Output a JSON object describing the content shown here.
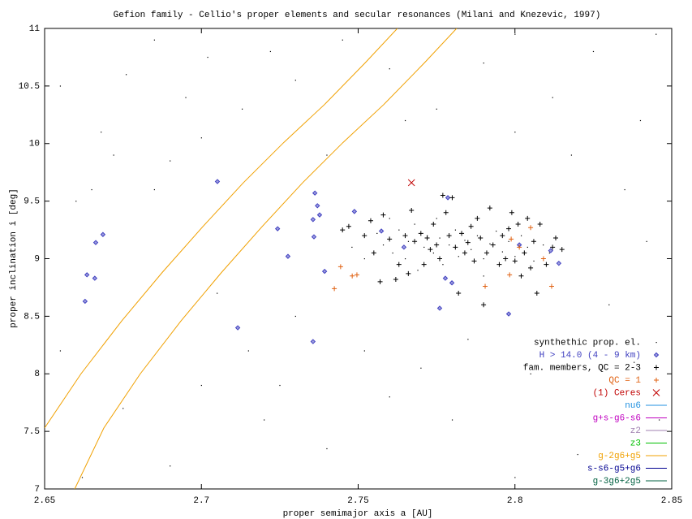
{
  "chart_data": {
    "type": "scatter",
    "title": "Gefion family - Cellio's proper elements and secular resonances (Milani and Knezevic, 1997)",
    "xlabel": "proper semimajor axis a [AU]",
    "ylabel": "proper inclination i [deg]",
    "xlim": [
      2.65,
      2.85
    ],
    "ylim": [
      7,
      11
    ],
    "xticks": [
      2.65,
      2.7,
      2.75,
      2.8,
      2.85
    ],
    "yticks": [
      7,
      7.5,
      8,
      8.5,
      9,
      9.5,
      10,
      10.5,
      11
    ],
    "grid": false,
    "legend": "bottom-right",
    "series": [
      {
        "name": "synthethic prop. el.",
        "color": "#000000",
        "marker": "dot",
        "x": [
          2.655,
          2.668,
          2.676,
          2.685,
          2.695,
          2.702,
          2.713,
          2.722,
          2.73,
          2.745,
          2.76,
          2.775,
          2.79,
          2.8,
          2.812,
          2.825,
          2.84,
          2.845,
          2.835,
          2.842,
          2.83,
          2.838,
          2.846,
          2.82,
          2.8,
          2.78,
          2.76,
          2.74,
          2.72,
          2.7,
          2.69,
          2.675,
          2.662,
          2.655,
          2.66,
          2.672,
          2.69,
          2.7,
          2.715,
          2.725,
          2.73,
          2.752,
          2.77,
          2.785,
          2.805,
          2.818,
          2.8,
          2.765,
          2.74,
          2.705,
          2.685,
          2.665,
          2.748,
          2.752,
          2.756,
          2.758,
          2.761,
          2.763,
          2.765,
          2.766,
          2.768,
          2.769,
          2.771,
          2.772,
          2.774,
          2.776,
          2.777,
          2.779,
          2.781,
          2.782,
          2.784,
          2.786,
          2.788,
          2.79,
          2.792,
          2.794,
          2.796,
          2.798,
          2.8,
          2.802,
          2.804,
          2.806,
          2.809,
          2.811,
          2.76,
          2.775,
          2.79
        ],
        "values": [
          10.5,
          10.1,
          10.6,
          10.9,
          10.4,
          10.75,
          10.3,
          10.8,
          10.55,
          10.9,
          10.65,
          10.3,
          10.7,
          10.95,
          10.4,
          10.8,
          10.2,
          10.95,
          9.6,
          9.15,
          8.6,
          8.1,
          7.6,
          7.3,
          7.1,
          7.6,
          7.8,
          7.35,
          7.6,
          7.9,
          7.2,
          7.7,
          7.1,
          8.2,
          9.5,
          9.9,
          9.85,
          10.05,
          8.2,
          7.9,
          8.5,
          8.2,
          8.05,
          8.3,
          8.0,
          9.9,
          10.1,
          10.2,
          9.9,
          8.7,
          9.6,
          9.6,
          9.1,
          9.0,
          9.22,
          9.12,
          9.05,
          9.25,
          9.0,
          9.15,
          9.3,
          8.9,
          9.1,
          9.2,
          9.05,
          9.18,
          8.95,
          9.12,
          9.25,
          9.02,
          9.16,
          9.08,
          9.2,
          9.0,
          9.13,
          9.24,
          9.06,
          9.15,
          9.02,
          9.2,
          9.1,
          8.98,
          9.12,
          9.05,
          9.35,
          9.35,
          8.85
        ]
      },
      {
        "name": "H > 14.0 (4 - 9 km)",
        "color": "#4040c0",
        "marker": "diamond",
        "x": [
          2.6635,
          2.6629,
          2.666,
          2.6663,
          2.6686,
          2.7051,
          2.7116,
          2.7243,
          2.7276,
          2.7362,
          2.737,
          2.7356,
          2.7359,
          2.7377,
          2.7393,
          2.7356,
          2.7488,
          2.7574,
          2.7646,
          2.7778,
          2.7786,
          2.7799,
          2.776,
          2.798,
          2.8014,
          2.8114,
          2.814
        ],
        "values": [
          8.86,
          8.63,
          8.83,
          9.14,
          9.21,
          9.67,
          8.4,
          9.26,
          9.02,
          9.57,
          9.46,
          9.34,
          9.19,
          9.38,
          8.89,
          8.28,
          9.41,
          9.24,
          9.1,
          8.83,
          9.53,
          8.79,
          8.57,
          8.52,
          9.12,
          9.07,
          8.96
        ]
      },
      {
        "name": "fam. members, QC = 2-3",
        "color": "#000000",
        "marker": "plus",
        "x": [
          2.745,
          2.747,
          2.752,
          2.755,
          2.757,
          2.758,
          2.76,
          2.762,
          2.763,
          2.765,
          2.766,
          2.768,
          2.77,
          2.771,
          2.772,
          2.774,
          2.775,
          2.776,
          2.778,
          2.779,
          2.78,
          2.781,
          2.782,
          2.783,
          2.784,
          2.785,
          2.786,
          2.787,
          2.788,
          2.789,
          2.79,
          2.791,
          2.792,
          2.793,
          2.795,
          2.796,
          2.797,
          2.798,
          2.799,
          2.8,
          2.801,
          2.802,
          2.803,
          2.804,
          2.805,
          2.806,
          2.807,
          2.808,
          2.81,
          2.812,
          2.813,
          2.815,
          2.754,
          2.767,
          2.773,
          2.777
        ],
        "values": [
          9.25,
          9.28,
          9.2,
          9.05,
          8.8,
          9.38,
          9.17,
          8.82,
          8.95,
          9.2,
          8.87,
          9.15,
          9.22,
          8.95,
          9.18,
          9.3,
          9.12,
          9.0,
          9.4,
          9.2,
          9.53,
          9.1,
          8.7,
          9.22,
          9.05,
          9.14,
          9.28,
          8.98,
          9.35,
          9.18,
          8.6,
          9.05,
          9.44,
          9.12,
          8.95,
          9.2,
          9.0,
          9.26,
          9.4,
          8.98,
          9.3,
          8.85,
          9.05,
          9.35,
          8.92,
          9.15,
          8.7,
          9.3,
          8.95,
          9.1,
          9.18,
          9.08,
          9.33,
          9.42,
          9.08,
          9.55
        ]
      },
      {
        "name": "QC = 1",
        "color": "#e06010",
        "marker": "plus",
        "x": [
          2.7444,
          2.7424,
          2.7481,
          2.7496,
          2.7905,
          2.7983,
          2.8014,
          2.805,
          2.8091,
          2.8117,
          2.7988
        ],
        "values": [
          8.93,
          8.74,
          8.85,
          8.86,
          8.76,
          8.86,
          9.1,
          9.27,
          9.0,
          8.76,
          9.17
        ]
      },
      {
        "name": "(1) Ceres",
        "color": "#c00000",
        "marker": "cross",
        "x": [
          2.767
        ],
        "values": [
          9.66
        ]
      },
      {
        "name": "nu6",
        "color": "#2090e0",
        "marker": "line",
        "x": [],
        "values": []
      },
      {
        "name": "g+s-g6-s6",
        "color": "#c000c0",
        "marker": "line",
        "x": [],
        "values": []
      },
      {
        "name": "z2",
        "color": "#a080b0",
        "marker": "line",
        "x": [],
        "values": []
      },
      {
        "name": "z3",
        "color": "#00c000",
        "marker": "line",
        "x": [],
        "values": []
      },
      {
        "name": "g-2g6+g5",
        "color": "#f0a000",
        "marker": "line",
        "x": [
          2.65,
          2.6616,
          2.6746,
          2.6875,
          2.7005,
          2.7134,
          2.7263,
          2.7393,
          2.7522,
          2.7625,
          null,
          2.6596,
          2.6689,
          2.6805,
          2.6935,
          2.7064,
          2.7194,
          2.7323,
          2.7452,
          2.7582,
          2.7711,
          2.7814
        ],
        "values": [
          7.53,
          8.0,
          8.46,
          8.88,
          9.28,
          9.66,
          10.01,
          10.34,
          10.7,
          11.0,
          null,
          7.0,
          7.53,
          8.0,
          8.46,
          8.88,
          9.28,
          9.66,
          10.01,
          10.34,
          10.7,
          11.0
        ]
      },
      {
        "name": "s-s6-g5+g6",
        "color": "#000090",
        "marker": "line",
        "x": [],
        "values": []
      },
      {
        "name": "g-3g6+2g5",
        "color": "#006040",
        "marker": "line",
        "x": [],
        "values": []
      }
    ]
  }
}
